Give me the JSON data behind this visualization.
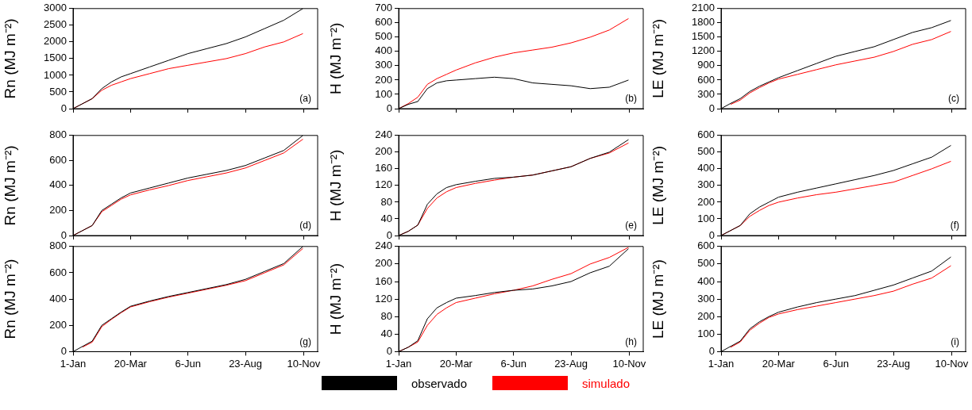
{
  "chart_data": [
    {
      "type": "line",
      "ylabel": "Rn (MJ m⁻²)",
      "annotations": [
        "(a)"
      ],
      "x": [
        "--01-01",
        "--01-14",
        "--01-27",
        "--02-09",
        "--02-22",
        "--03-07",
        "--03-20",
        "--04-15",
        "--05-11",
        "--06-06",
        "--07-02",
        "--07-28",
        "--08-23",
        "--09-18",
        "--10-14",
        "--11-09"
      ],
      "xlim": [
        "--01-01",
        "--11-29"
      ],
      "xticks": [
        {
          "value": "--01-01",
          "label": null
        },
        {
          "value": "--03-20",
          "label": null
        },
        {
          "value": "--06-06",
          "label": null
        },
        {
          "value": "--08-23",
          "label": null
        },
        {
          "value": "--11-10",
          "label": null
        }
      ],
      "ylim": [
        0,
        3000
      ],
      "yticks": [
        0,
        500,
        1000,
        1500,
        2000,
        2500,
        3000
      ],
      "tick_labels": "y",
      "series": [
        {
          "color": "#000000",
          "values": [
            0,
            150,
            300,
            600,
            800,
            950,
            1050,
            1250,
            1450,
            1650,
            1800,
            1950,
            2150,
            2400,
            2650,
            3000
          ]
        },
        {
          "color": "#ff0000",
          "values": [
            0,
            150,
            300,
            550,
            700,
            800,
            900,
            1050,
            1200,
            1300,
            1400,
            1500,
            1650,
            1850,
            2000,
            2250
          ]
        }
      ]
    },
    {
      "type": "line",
      "ylabel": "H (MJ m⁻²)",
      "annotations": [
        "(b)"
      ],
      "x": [
        "--01-01",
        "--01-14",
        "--01-27",
        "--02-09",
        "--02-22",
        "--03-07",
        "--03-20",
        "--04-15",
        "--05-11",
        "--06-06",
        "--07-02",
        "--07-28",
        "--08-23",
        "--09-18",
        "--10-14",
        "--11-09"
      ],
      "xlim": [
        "--01-01",
        "--11-29"
      ],
      "xticks": [
        {
          "value": "--01-01",
          "label": null
        },
        {
          "value": "--03-20",
          "label": null
        },
        {
          "value": "--06-06",
          "label": null
        },
        {
          "value": "--08-23",
          "label": null
        },
        {
          "value": "--11-10",
          "label": null
        }
      ],
      "ylim": [
        0,
        700
      ],
      "yticks": [
        0,
        100,
        200,
        300,
        400,
        500,
        600,
        700
      ],
      "tick_labels": "y",
      "series": [
        {
          "color": "#000000",
          "values": [
            0,
            30,
            50,
            140,
            180,
            195,
            200,
            210,
            220,
            210,
            180,
            170,
            160,
            140,
            150,
            200
          ]
        },
        {
          "color": "#ff0000",
          "values": [
            0,
            35,
            80,
            170,
            210,
            240,
            270,
            320,
            360,
            390,
            410,
            430,
            460,
            500,
            550,
            630
          ]
        }
      ]
    },
    {
      "type": "line",
      "ylabel": "LE (MJ m⁻²)",
      "annotations": [
        "(c)"
      ],
      "x": [
        "--01-01",
        "--01-14",
        "--01-27",
        "--02-09",
        "--02-22",
        "--03-07",
        "--03-20",
        "--04-15",
        "--05-11",
        "--06-06",
        "--07-02",
        "--07-28",
        "--08-23",
        "--09-18",
        "--10-14",
        "--11-09"
      ],
      "xlim": [
        "--01-01",
        "--11-29"
      ],
      "xticks": [
        {
          "value": "--01-01",
          "label": null
        },
        {
          "value": "--03-20",
          "label": null
        },
        {
          "value": "--06-06",
          "label": null
        },
        {
          "value": "--08-23",
          "label": null
        },
        {
          "value": "--11-10",
          "label": null
        }
      ],
      "ylim": [
        0,
        2100
      ],
      "yticks": [
        0,
        300,
        600,
        900,
        1200,
        1500,
        1800,
        2100
      ],
      "tick_labels": "y",
      "series": [
        {
          "color": "#000000",
          "values": [
            0,
            110,
            210,
            360,
            470,
            560,
            650,
            800,
            950,
            1100,
            1200,
            1300,
            1450,
            1600,
            1700,
            1850
          ]
        },
        {
          "color": "#ff0000",
          "values": [
            null,
            90,
            180,
            330,
            440,
            540,
            620,
            720,
            820,
            920,
            1000,
            1080,
            1200,
            1350,
            1450,
            1620
          ]
        }
      ]
    },
    {
      "type": "line",
      "ylabel": "Rn (MJ m⁻²)",
      "annotations": [
        "(d)"
      ],
      "x": [
        "--01-01",
        "--01-14",
        "--01-27",
        "--02-09",
        "--02-22",
        "--03-07",
        "--03-20",
        "--04-15",
        "--05-11",
        "--06-06",
        "--07-02",
        "--07-28",
        "--08-23",
        "--09-18",
        "--10-14",
        "--11-09"
      ],
      "xlim": [
        "--01-01",
        "--11-29"
      ],
      "xticks": [
        {
          "value": "--01-01",
          "label": null
        },
        {
          "value": "--03-20",
          "label": null
        },
        {
          "value": "--06-06",
          "label": null
        },
        {
          "value": "--08-23",
          "label": null
        },
        {
          "value": "--11-10",
          "label": null
        }
      ],
      "ylim": [
        0,
        800
      ],
      "yticks": [
        0,
        200,
        400,
        600,
        800
      ],
      "tick_labels": "y",
      "series": [
        {
          "color": "#000000",
          "values": [
            0,
            40,
            80,
            200,
            250,
            300,
            340,
            380,
            420,
            460,
            490,
            520,
            560,
            620,
            680,
            800
          ]
        },
        {
          "color": "#ff0000",
          "values": [
            0,
            40,
            80,
            190,
            240,
            290,
            325,
            365,
            400,
            440,
            470,
            500,
            540,
            600,
            660,
            770
          ]
        }
      ]
    },
    {
      "type": "line",
      "ylabel": "H (MJ m⁻²)",
      "annotations": [
        "(e)"
      ],
      "x": [
        "--01-01",
        "--01-14",
        "--01-27",
        "--02-09",
        "--02-22",
        "--03-07",
        "--03-20",
        "--04-15",
        "--05-11",
        "--06-06",
        "--07-02",
        "--07-28",
        "--08-23",
        "--09-18",
        "--10-14",
        "--11-09"
      ],
      "xlim": [
        "--01-01",
        "--11-29"
      ],
      "xticks": [
        {
          "value": "--01-01",
          "label": null
        },
        {
          "value": "--03-20",
          "label": null
        },
        {
          "value": "--06-06",
          "label": null
        },
        {
          "value": "--08-23",
          "label": null
        },
        {
          "value": "--11-10",
          "label": null
        }
      ],
      "ylim": [
        0,
        240
      ],
      "yticks": [
        0,
        40,
        80,
        120,
        160,
        200,
        240
      ],
      "tick_labels": "y",
      "series": [
        {
          "color": "#000000",
          "values": [
            0,
            10,
            25,
            75,
            100,
            115,
            122,
            130,
            137,
            140,
            145,
            155,
            165,
            185,
            200,
            230
          ]
        },
        {
          "color": "#ff0000",
          "values": [
            0,
            10,
            25,
            65,
            90,
            105,
            115,
            125,
            133,
            140,
            145,
            155,
            165,
            185,
            198,
            222
          ]
        }
      ]
    },
    {
      "type": "line",
      "ylabel": "LE (MJ m⁻²)",
      "annotations": [
        "(f)"
      ],
      "x": [
        "--01-01",
        "--01-14",
        "--01-27",
        "--02-09",
        "--02-22",
        "--03-07",
        "--03-20",
        "--04-15",
        "--05-11",
        "--06-06",
        "--07-02",
        "--07-28",
        "--08-23",
        "--09-18",
        "--10-14",
        "--11-09"
      ],
      "xlim": [
        "--01-01",
        "--11-29"
      ],
      "xticks": [
        {
          "value": "--01-01",
          "label": null
        },
        {
          "value": "--03-20",
          "label": null
        },
        {
          "value": "--06-06",
          "label": null
        },
        {
          "value": "--08-23",
          "label": null
        },
        {
          "value": "--11-10",
          "label": null
        }
      ],
      "ylim": [
        0,
        600
      ],
      "yticks": [
        0,
        100,
        200,
        300,
        400,
        500,
        600
      ],
      "tick_labels": "y",
      "series": [
        {
          "color": "#000000",
          "values": [
            0,
            30,
            60,
            130,
            170,
            200,
            230,
            260,
            285,
            310,
            335,
            360,
            390,
            430,
            470,
            540
          ]
        },
        {
          "color": "#ff0000",
          "values": [
            0,
            30,
            60,
            115,
            150,
            180,
            200,
            225,
            245,
            260,
            280,
            300,
            320,
            360,
            400,
            445
          ]
        }
      ]
    },
    {
      "type": "line",
      "ylabel": "Rn (MJ m⁻²)",
      "annotations": [
        "(g)"
      ],
      "x": [
        "--01-01",
        "--01-14",
        "--01-27",
        "--02-09",
        "--02-22",
        "--03-07",
        "--03-20",
        "--04-15",
        "--05-11",
        "--06-06",
        "--07-02",
        "--07-28",
        "--08-23",
        "--09-18",
        "--10-14",
        "--11-09"
      ],
      "xlim": [
        "--01-01",
        "--11-29"
      ],
      "xticks": [
        {
          "value": "--01-01",
          "label": "1-Jan"
        },
        {
          "value": "--03-20",
          "label": "20-Mar"
        },
        {
          "value": "--06-06",
          "label": "6-Jun"
        },
        {
          "value": "--08-23",
          "label": "23-Aug"
        },
        {
          "value": "--11-10",
          "label": "10-Nov"
        }
      ],
      "ylim": [
        0,
        800
      ],
      "yticks": [
        0,
        200,
        400,
        600,
        800
      ],
      "series": [
        {
          "color": "#000000",
          "values": [
            0,
            40,
            80,
            200,
            250,
            300,
            345,
            385,
            420,
            450,
            480,
            510,
            550,
            610,
            670,
            800
          ]
        },
        {
          "color": "#ff0000",
          "values": [
            null,
            35,
            72,
            190,
            245,
            295,
            340,
            380,
            415,
            445,
            475,
            505,
            540,
            600,
            660,
            785
          ]
        }
      ]
    },
    {
      "type": "line",
      "ylabel": "H (MJ m⁻²)",
      "annotations": [
        "(h)"
      ],
      "legend": "bottom",
      "x": [
        "--01-01",
        "--01-14",
        "--01-27",
        "--02-09",
        "--02-22",
        "--03-07",
        "--03-20",
        "--04-15",
        "--05-11",
        "--06-06",
        "--07-02",
        "--07-28",
        "--08-23",
        "--09-18",
        "--10-14",
        "--11-09"
      ],
      "xlim": [
        "--01-01",
        "--11-29"
      ],
      "xticks": [
        {
          "value": "--01-01",
          "label": "1-Jan"
        },
        {
          "value": "--03-20",
          "label": "20-Mar"
        },
        {
          "value": "--06-06",
          "label": "6-Jun"
        },
        {
          "value": "--08-23",
          "label": "23-Aug"
        },
        {
          "value": "--11-10",
          "label": "10-Nov"
        }
      ],
      "ylim": [
        0,
        240
      ],
      "yticks": [
        0,
        40,
        80,
        120,
        160,
        200,
        240
      ],
      "series": [
        {
          "name": "observado",
          "color": "#000000",
          "values": [
            0,
            10,
            25,
            75,
            100,
            112,
            122,
            128,
            135,
            140,
            143,
            150,
            160,
            180,
            195,
            235
          ]
        },
        {
          "name": "simulado",
          "color": "#ff0000",
          "values": [
            0,
            10,
            22,
            60,
            85,
            100,
            112,
            122,
            132,
            140,
            150,
            165,
            178,
            200,
            215,
            238
          ]
        }
      ]
    },
    {
      "type": "line",
      "ylabel": "LE (MJ m⁻²)",
      "annotations": [
        "(i)"
      ],
      "x": [
        "--01-01",
        "--01-14",
        "--01-27",
        "--02-09",
        "--02-22",
        "--03-07",
        "--03-20",
        "--04-15",
        "--05-11",
        "--06-06",
        "--07-02",
        "--07-28",
        "--08-23",
        "--09-18",
        "--10-14",
        "--11-09"
      ],
      "xlim": [
        "--01-01",
        "--11-29"
      ],
      "xticks": [
        {
          "value": "--01-01",
          "label": "1-Jan"
        },
        {
          "value": "--03-20",
          "label": "20-Mar"
        },
        {
          "value": "--06-06",
          "label": "6-Jun"
        },
        {
          "value": "--08-23",
          "label": "23-Aug"
        },
        {
          "value": "--11-10",
          "label": "10-Nov"
        }
      ],
      "ylim": [
        0,
        600
      ],
      "yticks": [
        0,
        100,
        200,
        300,
        400,
        500,
        600
      ],
      "series": [
        {
          "color": "#000000",
          "values": [
            0,
            30,
            60,
            130,
            170,
            200,
            225,
            255,
            280,
            300,
            320,
            350,
            380,
            420,
            460,
            540
          ]
        },
        {
          "color": "#ff0000",
          "values": [
            null,
            25,
            55,
            122,
            162,
            195,
            215,
            240,
            260,
            280,
            300,
            320,
            345,
            385,
            420,
            490
          ]
        }
      ]
    }
  ]
}
